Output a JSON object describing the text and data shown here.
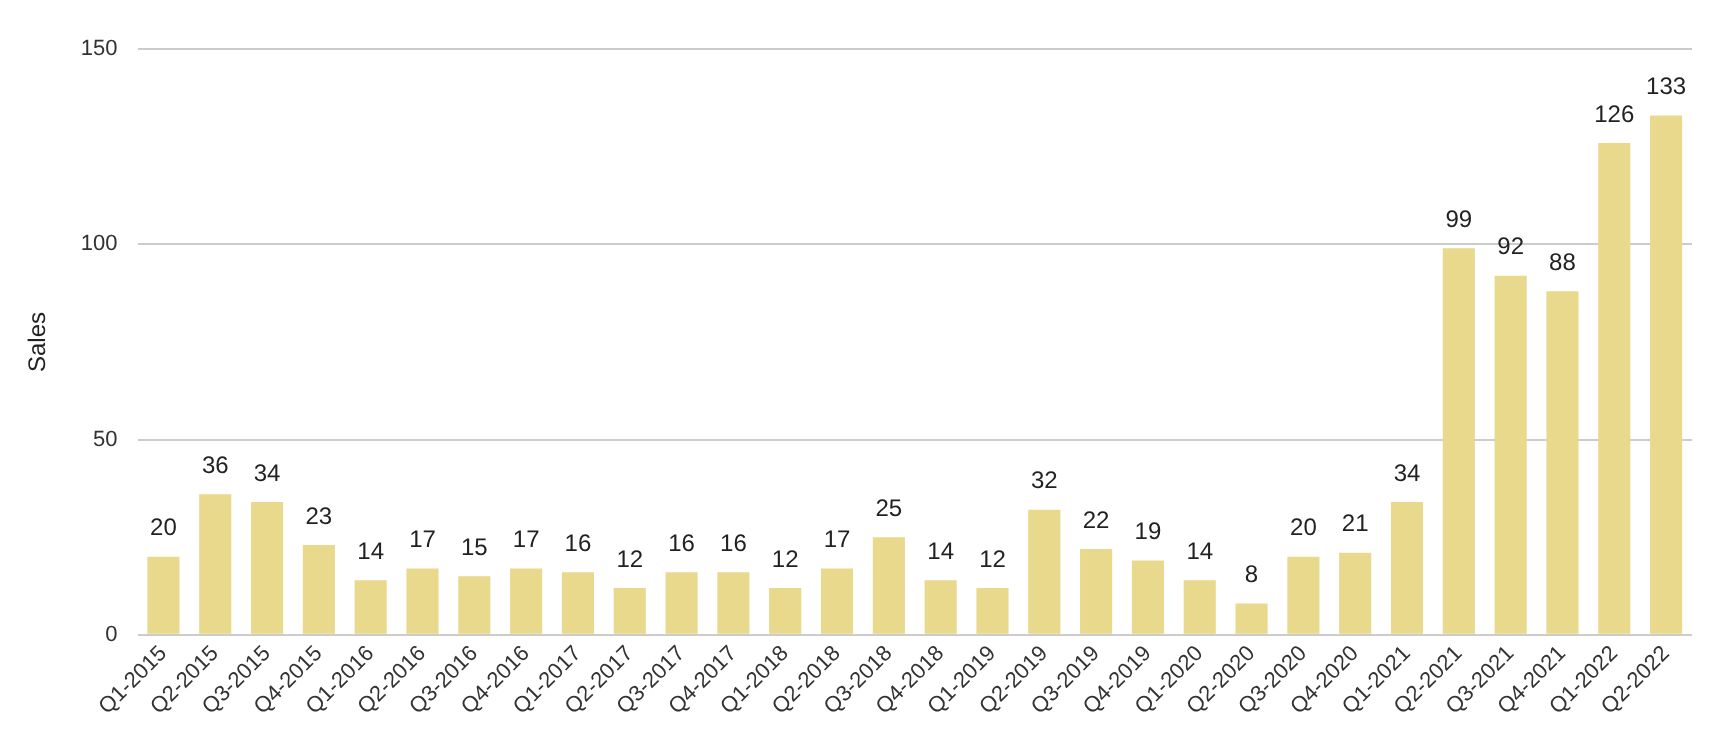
{
  "chart_data": {
    "type": "bar",
    "ylabel": "Sales",
    "categories": [
      "Q1-2015",
      "Q2-2015",
      "Q3-2015",
      "Q4-2015",
      "Q1-2016",
      "Q2-2016",
      "Q3-2016",
      "Q4-2016",
      "Q1-2017",
      "Q2-2017",
      "Q3-2017",
      "Q4-2017",
      "Q1-2018",
      "Q2-2018",
      "Q3-2018",
      "Q4-2018",
      "Q1-2019",
      "Q2-2019",
      "Q3-2019",
      "Q4-2019",
      "Q1-2020",
      "Q2-2020",
      "Q3-2020",
      "Q4-2020",
      "Q1-2021",
      "Q2-2021",
      "Q3-2021",
      "Q4-2021",
      "Q1-2022",
      "Q2-2022"
    ],
    "values": [
      20,
      36,
      34,
      23,
      14,
      17,
      15,
      17,
      16,
      12,
      16,
      16,
      12,
      17,
      25,
      14,
      12,
      32,
      22,
      19,
      14,
      8,
      20,
      21,
      34,
      99,
      92,
      88,
      126,
      133
    ],
    "color": "#e8d98c",
    "ylim": [
      0,
      150
    ],
    "yticks": [
      0,
      50,
      100,
      150
    ],
    "grid": "y",
    "data_labels": true,
    "legend": false
  }
}
